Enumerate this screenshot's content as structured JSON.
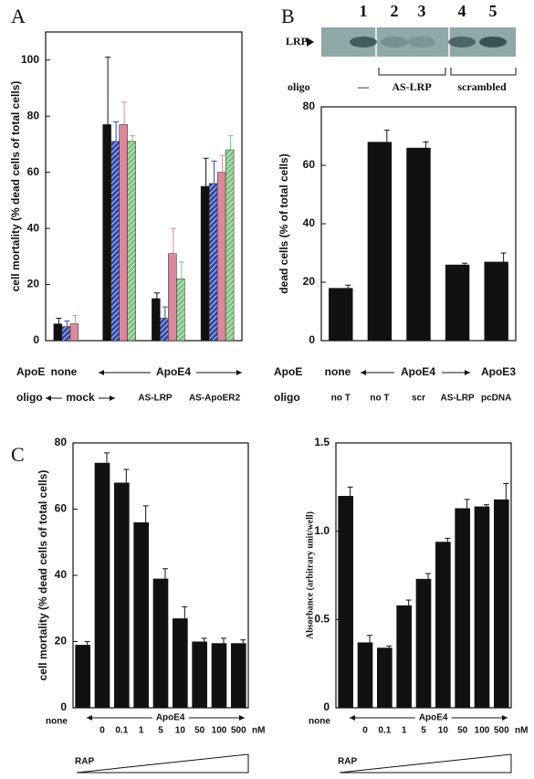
{
  "chart_data": [
    {
      "type": "grouped-bar",
      "panel": "A",
      "y_label": "cell mortality (% dead cells of total cells)",
      "categories": [
        null,
        null,
        null,
        null
      ],
      "series": [
        {
          "color": "#111111",
          "values": [
            6,
            77,
            15,
            55
          ],
          "errors": [
            2,
            24,
            2,
            10
          ]
        },
        {
          "color": "#3347a8",
          "hatch": true,
          "values": [
            5,
            71,
            8,
            56
          ],
          "errors": [
            2,
            7,
            4,
            8
          ]
        },
        {
          "color": "#d88a9c",
          "values": [
            6,
            77,
            31,
            60
          ],
          "errors": [
            3,
            8,
            9,
            6
          ]
        },
        {
          "color": "#7fbf7f",
          "hatch": true,
          "values": [
            null,
            71,
            22,
            68
          ],
          "errors": [
            null,
            2,
            6,
            5
          ]
        }
      ],
      "ylim": [
        0,
        110
      ],
      "yticks": [
        0,
        20,
        40,
        60,
        80,
        100
      ],
      "rows": [
        {
          "label": "ApoE",
          "items": [
            "none",
            "ApoE4"
          ]
        },
        {
          "label": "oligo",
          "items": [
            "mock",
            "AS-LRP",
            "AS-ApoER2"
          ]
        }
      ]
    },
    {
      "type": "bar",
      "panel": "B",
      "gel": {
        "marker": "LRP",
        "lanes": [
          1,
          2,
          3,
          4,
          5
        ],
        "row_label": "oligo",
        "groups": [
          "—",
          "AS-LRP",
          "scrambled"
        ]
      },
      "y_label": "dead cells (% of total cells)",
      "categories": [
        "no T",
        "no T",
        "scr",
        "AS-LRP",
        "pcDNA"
      ],
      "values": [
        18,
        68,
        66,
        26,
        27
      ],
      "errors": [
        1,
        4,
        2,
        0.5,
        3
      ],
      "color": "#111111",
      "ylim": [
        0,
        80
      ],
      "yticks": [
        0,
        20,
        40,
        60,
        80
      ],
      "rows": [
        {
          "label": "ApoE",
          "items": [
            "none",
            "ApoE4",
            "ApoE3"
          ]
        },
        {
          "label": "oligo"
        }
      ]
    },
    {
      "type": "bar",
      "panel": "C",
      "y_label": "cell mortality (% dead cells of total cells)",
      "categories": [
        "none",
        "0",
        "0.1",
        "1",
        "5",
        "10",
        "50",
        "100",
        "500"
      ],
      "values": [
        19,
        74,
        68,
        56,
        39,
        27,
        20,
        19.5,
        19.5
      ],
      "errors": [
        1,
        3,
        4,
        5,
        3,
        3.5,
        1,
        1.5,
        1
      ],
      "color": "#111111",
      "ylim": [
        0,
        80
      ],
      "yticks": [
        0,
        20,
        40,
        60,
        80
      ],
      "group_label": "ApoE4",
      "unit": "nM",
      "ramp_label": "RAP"
    },
    {
      "type": "bar",
      "y_label": "Absorbance (arbitrary unit/well)",
      "categories": [
        "none",
        "0",
        "0.1",
        "1",
        "5",
        "10",
        "50",
        "100",
        "500"
      ],
      "values": [
        1.2,
        0.37,
        0.34,
        0.58,
        0.73,
        0.94,
        1.13,
        1.14,
        1.18
      ],
      "errors": [
        0.05,
        0.04,
        0.01,
        0.03,
        0.03,
        0.02,
        0.05,
        0.01,
        0.09
      ],
      "color": "#111111",
      "ylim": [
        0,
        1.5
      ],
      "yticks": [
        0,
        0.5,
        {
          "value": 1,
          "label": "1.0"
        },
        1.5
      ],
      "group_label": "ApoE4",
      "unit": "nM",
      "ramp_label": "RAP"
    }
  ]
}
